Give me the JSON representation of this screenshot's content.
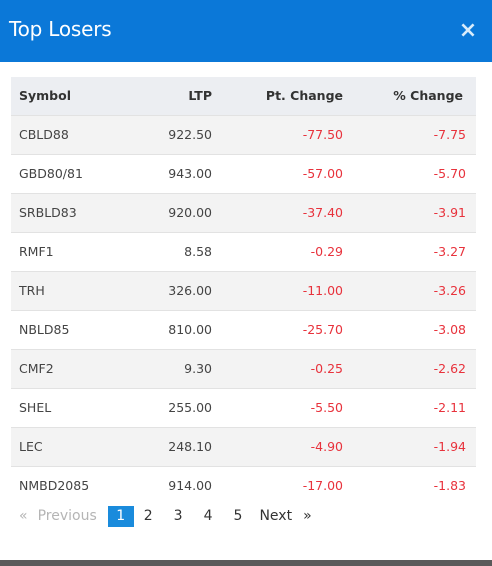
{
  "modal": {
    "title": "Top Losers",
    "close_glyph": "×"
  },
  "table": {
    "headers": {
      "symbol": "Symbol",
      "ltp": "LTP",
      "pt_change": "Pt. Change",
      "pct_change": "% Change"
    },
    "rows": [
      {
        "symbol": "CBLD88",
        "ltp": "922.50",
        "pt_change": "-77.50",
        "pct_change": "-7.75"
      },
      {
        "symbol": "GBD80/81",
        "ltp": "943.00",
        "pt_change": "-57.00",
        "pct_change": "-5.70"
      },
      {
        "symbol": "SRBLD83",
        "ltp": "920.00",
        "pt_change": "-37.40",
        "pct_change": "-3.91"
      },
      {
        "symbol": "RMF1",
        "ltp": "8.58",
        "pt_change": "-0.29",
        "pct_change": "-3.27"
      },
      {
        "symbol": "TRH",
        "ltp": "326.00",
        "pt_change": "-11.00",
        "pct_change": "-3.26"
      },
      {
        "symbol": "NBLD85",
        "ltp": "810.00",
        "pt_change": "-25.70",
        "pct_change": "-3.08"
      },
      {
        "symbol": "CMF2",
        "ltp": "9.30",
        "pt_change": "-0.25",
        "pct_change": "-2.62"
      },
      {
        "symbol": "SHEL",
        "ltp": "255.00",
        "pt_change": "-5.50",
        "pct_change": "-2.11"
      },
      {
        "symbol": "LEC",
        "ltp": "248.10",
        "pt_change": "-4.90",
        "pct_change": "-1.94"
      },
      {
        "symbol": "NMBD2085",
        "ltp": "914.00",
        "pt_change": "-17.00",
        "pct_change": "-1.83"
      }
    ]
  },
  "pagination": {
    "first_glyph": "«",
    "previous_label": "Previous",
    "pages": [
      "1",
      "2",
      "3",
      "4",
      "5"
    ],
    "current_page": "1",
    "next_label": "Next",
    "last_glyph": "»"
  },
  "colors": {
    "header_bg": "#0b78d8",
    "negative": "#e8323c",
    "active_page": "#1a8bdc"
  }
}
